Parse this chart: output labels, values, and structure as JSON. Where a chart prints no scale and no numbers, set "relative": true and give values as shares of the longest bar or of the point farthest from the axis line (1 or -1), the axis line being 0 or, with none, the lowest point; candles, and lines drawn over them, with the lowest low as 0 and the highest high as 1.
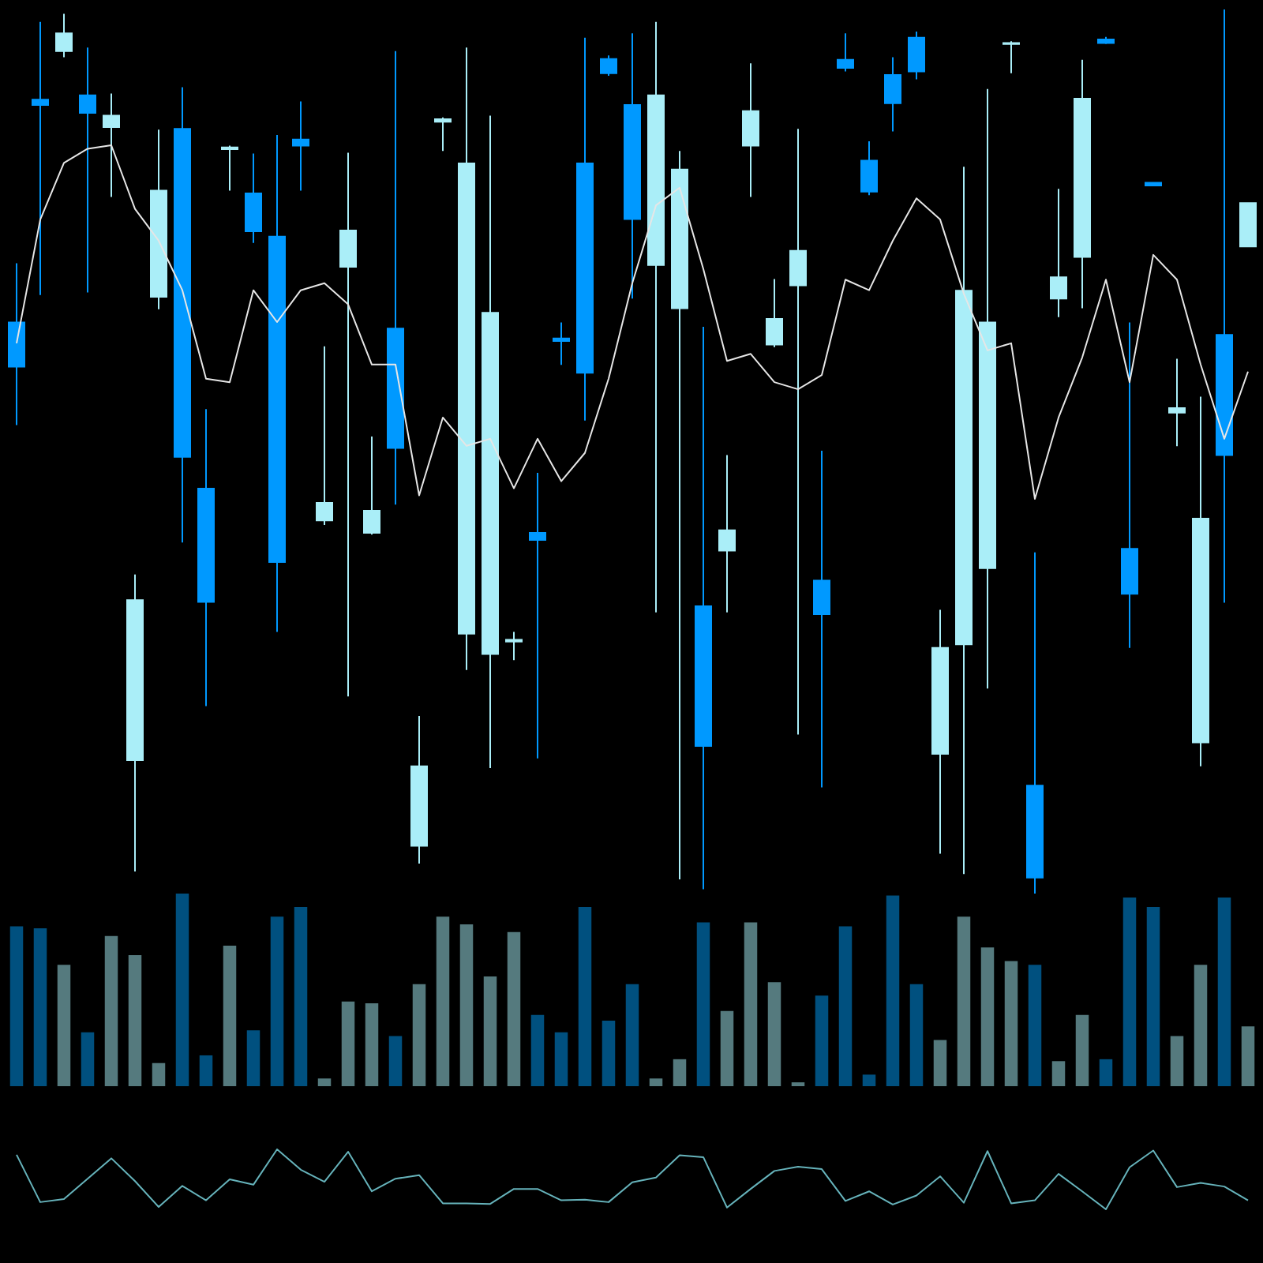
{
  "chart_data": [
    {
      "type": "candlestick",
      "categories": [
        null,
        null,
        null,
        null,
        null,
        null,
        null,
        null,
        null,
        null,
        null,
        null,
        null,
        null,
        null,
        null,
        null,
        null,
        null,
        null,
        null,
        null,
        null,
        null,
        null,
        null,
        null,
        null,
        null,
        null,
        null,
        null,
        null,
        null,
        null,
        null,
        null,
        null,
        null,
        null,
        null,
        null,
        null,
        null,
        null,
        null,
        null,
        null,
        null,
        null,
        null,
        null,
        null
      ],
      "ohlc": [
        [
          0.646,
          0.713,
          0.53,
          0.596
        ],
        [
          0.898,
          0.986,
          0.677,
          0.892
        ],
        [
          0.953,
          0.995,
          0.946,
          0.973
        ],
        [
          0.903,
          0.957,
          0.68,
          0.883
        ],
        [
          0.867,
          0.905,
          0.788,
          0.88
        ],
        [
          0.151,
          0.361,
          0.025,
          0.332
        ],
        [
          0.675,
          0.864,
          0.661,
          0.795
        ],
        [
          0.865,
          0.912,
          0.397,
          0.494
        ],
        [
          0.458,
          0.548,
          0.212,
          0.33
        ],
        [
          0.842,
          0.846,
          0.795,
          0.844
        ],
        [
          0.792,
          0.837,
          0.736,
          0.749
        ],
        [
          0.743,
          0.858,
          0.296,
          0.375
        ],
        [
          0.853,
          0.896,
          0.795,
          0.846
        ],
        [
          0.422,
          0.619,
          0.417,
          0.442
        ],
        [
          0.709,
          0.838,
          0.223,
          0.75
        ],
        [
          0.408,
          0.517,
          0.406,
          0.433
        ],
        [
          0.639,
          0.953,
          0.44,
          0.504
        ],
        [
          0.054,
          0.201,
          0.034,
          0.144
        ],
        [
          0.873,
          0.878,
          0.84,
          0.876
        ],
        [
          0.294,
          0.957,
          0.253,
          0.826
        ],
        [
          0.271,
          0.88,
          0.142,
          0.657
        ],
        [
          0.285,
          0.296,
          0.264,
          0.287
        ],
        [
          0.408,
          0.476,
          0.153,
          0.4
        ],
        [
          0.628,
          0.646,
          0.598,
          0.625
        ],
        [
          0.826,
          0.968,
          0.535,
          0.589
        ],
        [
          0.944,
          0.948,
          0.925,
          0.928
        ],
        [
          0.892,
          0.973,
          0.673,
          0.763
        ],
        [
          0.711,
          0.986,
          0.318,
          0.903
        ],
        [
          0.662,
          0.84,
          0.016,
          0.819
        ],
        [
          0.325,
          0.641,
          0.005,
          0.167
        ],
        [
          0.388,
          0.496,
          0.318,
          0.411
        ],
        [
          0.846,
          0.939,
          0.788,
          0.885
        ],
        [
          0.621,
          0.695,
          0.618,
          0.65
        ],
        [
          0.688,
          0.865,
          0.18,
          0.727
        ],
        [
          0.354,
          0.501,
          0.12,
          0.316
        ],
        [
          0.943,
          0.973,
          0.93,
          0.934
        ],
        [
          0.829,
          0.851,
          0.79,
          0.794
        ],
        [
          0.926,
          0.946,
          0.862,
          0.894
        ],
        [
          0.968,
          0.975,
          0.921,
          0.93
        ],
        [
          0.158,
          0.321,
          0.045,
          0.278
        ],
        [
          0.282,
          0.822,
          0.022,
          0.682
        ],
        [
          0.368,
          0.91,
          0.232,
          0.646
        ],
        [
          0.961,
          0.964,
          0.928,
          0.962
        ],
        [
          0.122,
          0.386,
          0,
          0.018
        ],
        [
          0.673,
          0.797,
          0.652,
          0.697
        ],
        [
          0.72,
          0.943,
          0.662,
          0.899
        ],
        [
          0.966,
          0.969,
          0.961,
          0.962
        ],
        [
          0.39,
          0.646,
          0.278,
          0.339
        ],
        [
          0.804,
          0.804,
          0.801,
          0.801
        ],
        [
          0.544,
          0.605,
          0.506,
          0.549
        ],
        [
          0.171,
          0.562,
          0.144,
          0.424
        ],
        [
          0.632,
          1,
          0.329,
          0.496
        ],
        [
          0.732,
          0.781,
          0.732,
          0.781
        ]
      ],
      "colors": [
        "#0099ff",
        "#0099ff",
        "#aaeef8",
        "#0099ff",
        "#aaeef8",
        "#aaeef8",
        "#aaeef8",
        "#0099ff",
        "#0099ff",
        "#aaeef8",
        "#0099ff",
        "#0099ff",
        "#0099ff",
        "#aaeef8",
        "#aaeef8",
        "#aaeef8",
        "#0099ff",
        "#aaeef8",
        "#aaeef8",
        "#aaeef8",
        "#aaeef8",
        "#aaeef8",
        "#0099ff",
        "#0099ff",
        "#0099ff",
        "#0099ff",
        "#0099ff",
        "#aaeef8",
        "#aaeef8",
        "#0099ff",
        "#aaeef8",
        "#aaeef8",
        "#aaeef8",
        "#aaeef8",
        "#0099ff",
        "#0099ff",
        "#0099ff",
        "#0099ff",
        "#0099ff",
        "#aaeef8",
        "#aaeef8",
        "#aaeef8",
        "#aaeef8",
        "#0099ff",
        "#aaeef8",
        "#aaeef8",
        "#0099ff",
        "#0099ff",
        "#0099ff",
        "#aaeef8",
        "#aaeef8",
        "#0099ff",
        "#aaeef8"
      ],
      "relative": true
    },
    {
      "type": "line",
      "relative": true,
      "marker": "none",
      "color": "#e6e6e6",
      "categories": [
        null,
        null,
        null,
        null,
        null,
        null,
        null,
        null,
        null,
        null,
        null,
        null,
        null,
        null,
        null,
        null,
        null,
        null,
        null,
        null,
        null,
        null,
        null,
        null,
        null,
        null,
        null,
        null,
        null,
        null,
        null,
        null,
        null,
        null,
        null,
        null,
        null,
        null,
        null,
        null,
        null,
        null,
        null,
        null,
        null,
        null,
        null,
        null,
        null,
        null,
        null,
        null,
        null
      ],
      "values": [
        0.44,
        0.79,
        0.95,
        0.99,
        1,
        0.82,
        0.73,
        0.59,
        0.34,
        0.33,
        0.59,
        0.5,
        0.59,
        0.61,
        0.55,
        0.38,
        0.38,
        0.01,
        0.23,
        0.15,
        0.17,
        0.03,
        0.17,
        0.05,
        0.13,
        0.34,
        0.61,
        0.83,
        0.88,
        0.65,
        0.39,
        0.41,
        0.33,
        0.31,
        0.35,
        0.62,
        0.59,
        0.73,
        0.85,
        0.79,
        0.58,
        0.42,
        0.44,
        0,
        0.23,
        0.4,
        0.62,
        0.33,
        0.69,
        0.62,
        0.38,
        0.17,
        0.36
      ]
    },
    {
      "type": "bar",
      "relative": true,
      "categories": [
        null,
        null,
        null,
        null,
        null,
        null,
        null,
        null,
        null,
        null,
        null,
        null,
        null,
        null,
        null,
        null,
        null,
        null,
        null,
        null,
        null,
        null,
        null,
        null,
        null,
        null,
        null,
        null,
        null,
        null,
        null,
        null,
        null,
        null,
        null,
        null,
        null,
        null,
        null,
        null,
        null,
        null,
        null,
        null,
        null,
        null,
        null,
        null,
        null,
        null,
        null,
        null,
        null
      ],
      "values": [
        0.83,
        0.82,
        0.63,
        0.28,
        0.78,
        0.68,
        0.12,
        1,
        0.16,
        0.73,
        0.29,
        0.88,
        0.93,
        0.04,
        0.44,
        0.43,
        0.26,
        0.53,
        0.88,
        0.84,
        0.57,
        0.8,
        0.37,
        0.28,
        0.93,
        0.34,
        0.53,
        0.04,
        0.14,
        0.85,
        0.39,
        0.85,
        0.54,
        0.02,
        0.47,
        0.83,
        0.06,
        0.99,
        0.53,
        0.24,
        0.88,
        0.72,
        0.65,
        0.63,
        0.13,
        0.37,
        0.14,
        0.98,
        0.93,
        0.26,
        0.63,
        0.98,
        0.31
      ],
      "colors": [
        "#00507f",
        "#00507f",
        "#557a7e",
        "#00507f",
        "#557a7e",
        "#557a7e",
        "#557a7e",
        "#00507f",
        "#00507f",
        "#557a7e",
        "#00507f",
        "#00507f",
        "#00507f",
        "#557a7e",
        "#557a7e",
        "#557a7e",
        "#00507f",
        "#557a7e",
        "#557a7e",
        "#557a7e",
        "#557a7e",
        "#557a7e",
        "#00507f",
        "#00507f",
        "#00507f",
        "#00507f",
        "#00507f",
        "#557a7e",
        "#557a7e",
        "#00507f",
        "#557a7e",
        "#557a7e",
        "#557a7e",
        "#557a7e",
        "#00507f",
        "#00507f",
        "#00507f",
        "#00507f",
        "#00507f",
        "#557a7e",
        "#557a7e",
        "#557a7e",
        "#557a7e",
        "#00507f",
        "#557a7e",
        "#557a7e",
        "#00507f",
        "#00507f",
        "#00507f",
        "#557a7e",
        "#557a7e",
        "#00507f",
        "#557a7e"
      ]
    },
    {
      "type": "line",
      "relative": true,
      "marker": "none",
      "color": "#66b3bb",
      "categories": [
        null,
        null,
        null,
        null,
        null,
        null,
        null,
        null,
        null,
        null,
        null,
        null,
        null,
        null,
        null,
        null,
        null,
        null,
        null,
        null,
        null,
        null,
        null,
        null,
        null,
        null,
        null,
        null,
        null,
        null,
        null,
        null,
        null,
        null,
        null,
        null,
        null,
        null,
        null,
        null,
        null,
        null,
        null,
        null,
        null,
        null,
        null,
        null,
        null,
        null,
        null,
        null,
        null
      ],
      "values": [
        0.91,
        0.12,
        0.17,
        0.51,
        0.85,
        0.47,
        0.04,
        0.39,
        0.15,
        0.5,
        0.41,
        1,
        0.66,
        0.46,
        0.96,
        0.3,
        0.51,
        0.57,
        0.1,
        0.1,
        0.09,
        0.34,
        0.34,
        0.15,
        0.16,
        0.12,
        0.45,
        0.53,
        0.9,
        0.87,
        0.03,
        0.34,
        0.64,
        0.71,
        0.67,
        0.14,
        0.3,
        0.08,
        0.23,
        0.55,
        0.11,
        0.97,
        0.1,
        0.15,
        0.59,
        0.3,
        0,
        0.7,
        0.98,
        0.37,
        0.44,
        0.38,
        0.15
      ]
    }
  ]
}
